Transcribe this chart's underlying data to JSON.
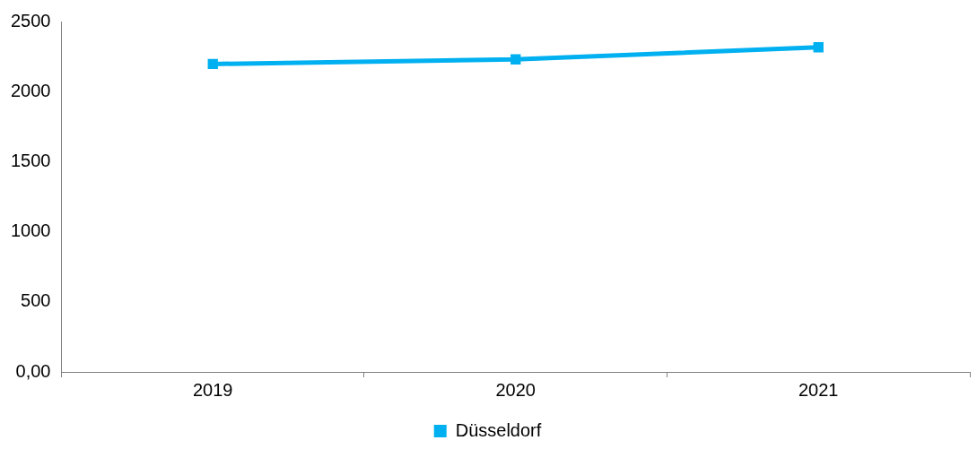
{
  "chart_data": {
    "type": "line",
    "categories": [
      "2019",
      "2020",
      "2021"
    ],
    "series": [
      {
        "name": "Düsseldorf",
        "color": "#00b0f0",
        "values": [
          2197,
          2230,
          2316
        ]
      }
    ],
    "ylim": [
      0,
      2500
    ],
    "yticks": [
      {
        "value": 0,
        "label": "0,00"
      },
      500,
      1000,
      1500,
      2000,
      2500
    ],
    "marker": "square",
    "legend": "bottom",
    "grid": false
  }
}
